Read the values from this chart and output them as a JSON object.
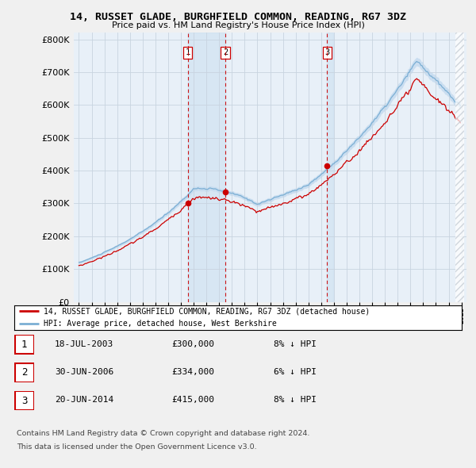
{
  "title": "14, RUSSET GLADE, BURGHFIELD COMMON, READING, RG7 3DZ",
  "subtitle": "Price paid vs. HM Land Registry's House Price Index (HPI)",
  "legend_line1": "14, RUSSET GLADE, BURGHFIELD COMMON, READING, RG7 3DZ (detached house)",
  "legend_line2": "HPI: Average price, detached house, West Berkshire",
  "footer1": "Contains HM Land Registry data © Crown copyright and database right 2024.",
  "footer2": "This data is licensed under the Open Government Licence v3.0.",
  "sale_labels": [
    "1",
    "2",
    "3"
  ],
  "sale_dates": [
    "18-JUL-2003",
    "30-JUN-2006",
    "20-JUN-2014"
  ],
  "sale_prices": [
    300000,
    334000,
    415000
  ],
  "sale_pct": [
    "8%",
    "6%",
    "8%"
  ],
  "sale_years": [
    2003.54,
    2006.49,
    2014.47
  ],
  "ylim": [
    0,
    820000
  ],
  "yticks": [
    0,
    100000,
    200000,
    300000,
    400000,
    500000,
    600000,
    700000,
    800000
  ],
  "hpi_color": "#7bafd4",
  "hpi_fill_color": "#c8ddf0",
  "price_color": "#cc0000",
  "vline_color": "#cc0000",
  "bg_color": "#e8f0f8",
  "grid_color": "#c8d4e0",
  "fig_bg": "#f0f0f0"
}
